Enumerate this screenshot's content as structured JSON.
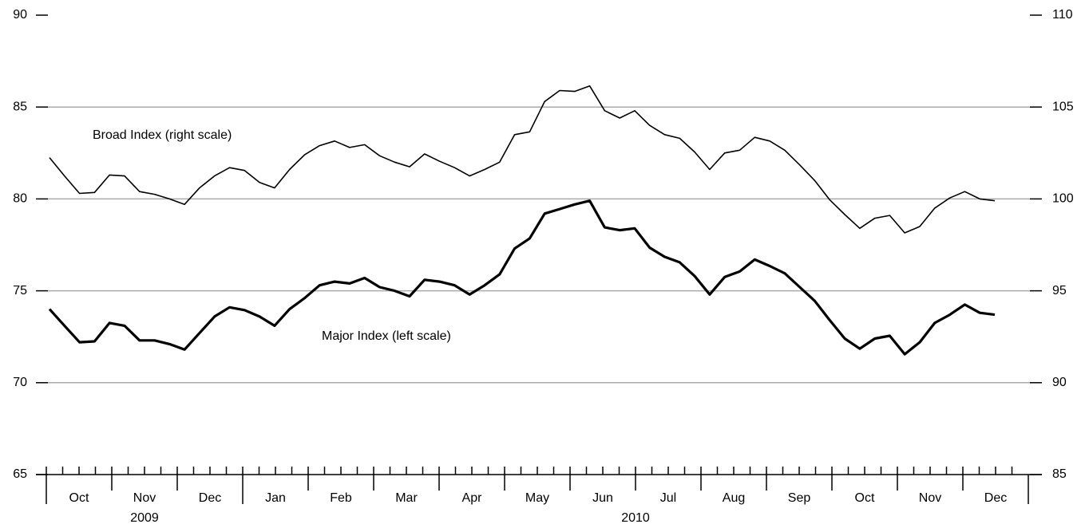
{
  "chart_data": {
    "type": "line",
    "series": [
      {
        "name": "Broad Index (right scale)",
        "axis": "y2",
        "color": "#000000",
        "values": [
          102.25,
          101.25,
          100.3,
          100.35,
          101.3,
          101.25,
          100.4,
          100.25,
          100.0,
          99.7,
          100.6,
          101.25,
          101.7,
          101.55,
          100.9,
          100.6,
          101.6,
          102.4,
          102.9,
          103.15,
          102.8,
          102.95,
          102.35,
          102.0,
          101.75,
          102.45,
          102.05,
          101.7,
          101.25,
          101.6,
          102.0,
          103.5,
          103.65,
          105.3,
          105.9,
          105.85,
          106.15,
          104.8,
          104.4,
          104.8,
          104.0,
          103.5,
          103.3,
          102.55,
          101.6,
          102.5,
          102.65,
          103.35,
          103.15,
          102.65,
          101.85,
          101.0,
          99.95,
          99.15,
          98.4,
          98.95,
          99.1,
          98.15,
          98.5,
          99.5,
          100.05,
          100.4,
          100.0,
          99.9
        ]
      },
      {
        "name": "Major Index (left scale)",
        "color": "#000000",
        "values": [
          74.0,
          73.1,
          72.2,
          72.25,
          73.25,
          73.1,
          72.3,
          72.3,
          72.1,
          71.8,
          72.7,
          73.6,
          74.1,
          73.95,
          73.6,
          73.1,
          74.0,
          74.6,
          75.3,
          75.5,
          75.4,
          75.7,
          75.2,
          75.0,
          74.7,
          75.6,
          75.5,
          75.3,
          74.8,
          75.3,
          75.9,
          77.3,
          77.85,
          79.2,
          79.45,
          79.7,
          79.9,
          78.45,
          78.3,
          78.4,
          77.35,
          76.85,
          76.55,
          75.8,
          74.8,
          75.75,
          76.05,
          76.7,
          76.35,
          75.95,
          75.2,
          74.45,
          73.4,
          72.4,
          71.85,
          72.4,
          72.55,
          71.55,
          72.2,
          73.25,
          73.7,
          74.25,
          73.8,
          73.7
        ]
      }
    ],
    "years": [
      {
        "label": "2009",
        "months": [
          "Oct",
          "Nov",
          "Dec"
        ]
      },
      {
        "label": "2010",
        "months": [
          "Jan",
          "Feb",
          "Mar",
          "Apr",
          "May",
          "Jun",
          "Jul",
          "Aug",
          "Sep",
          "Oct",
          "Nov",
          "Dec"
        ]
      }
    ],
    "ylim": [
      65,
      90
    ],
    "yticks": [
      65,
      70,
      75,
      80,
      85,
      90
    ],
    "y2lim": [
      85,
      110
    ],
    "y2ticks": [
      85,
      90,
      95,
      100,
      105,
      110
    ],
    "grid": true
  }
}
